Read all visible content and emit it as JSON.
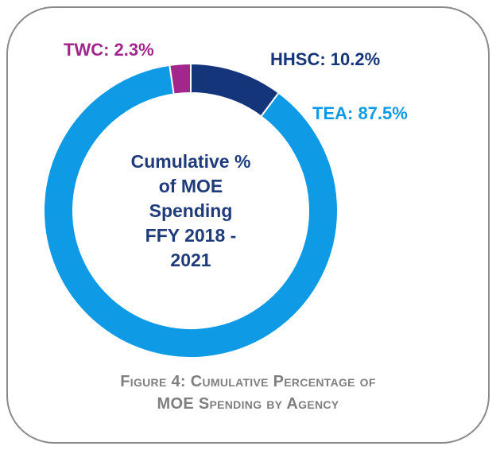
{
  "chart_data": {
    "type": "pie",
    "donut": true,
    "center_title": "Cumulative %\nof MOE\nSpending\nFFY 2018 -\n2021",
    "slices": [
      {
        "name": "HHSC",
        "value": 10.2,
        "label": "HHSC: 10.2%",
        "color": "#14357a",
        "label_color": "#14357a"
      },
      {
        "name": "TEA",
        "value": 87.5,
        "label": "TEA: 87.5%",
        "color": "#0f9ae6",
        "label_color": "#0f9ae6"
      },
      {
        "name": "TWC",
        "value": 2.3,
        "label": "TWC: 2.3%",
        "color": "#a3268c",
        "label_color": "#a3268c"
      }
    ]
  },
  "caption": {
    "line1": "Figure 4: Cumulative Percentage of",
    "line2": "MOE Spending by Agency"
  }
}
